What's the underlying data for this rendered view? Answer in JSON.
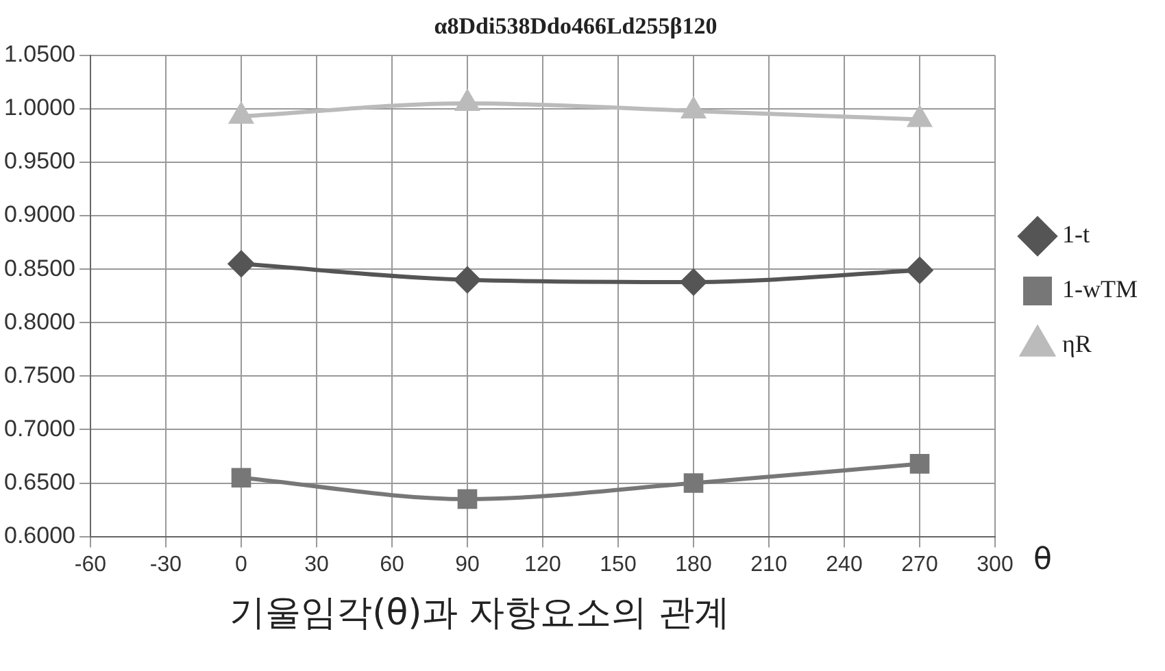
{
  "chart_data": {
    "type": "line",
    "title": "α8Ddi538Ddo466Ld255β120",
    "xlabel": "θ",
    "annotations": [
      "기울임각(θ)과 자항요소의 관계"
    ],
    "x": [
      0,
      90,
      180,
      270
    ],
    "series": [
      {
        "name": "1-t",
        "color": "#555555",
        "marker": "diamond",
        "values": [
          0.855,
          0.84,
          0.838,
          0.849
        ]
      },
      {
        "name": "1-wTM",
        "color": "#777777",
        "marker": "square",
        "values": [
          0.655,
          0.635,
          0.65,
          0.668
        ]
      },
      {
        "name": "ηR",
        "color": "#bbbbbb",
        "marker": "triangle",
        "values": [
          0.993,
          1.005,
          0.998,
          0.99
        ]
      }
    ],
    "xlim": [
      -60,
      300
    ],
    "xticks": [
      -60,
      -30,
      0,
      30,
      60,
      90,
      120,
      150,
      180,
      210,
      240,
      270,
      300
    ],
    "ylim": [
      0.6,
      1.05
    ],
    "yticks": [
      {
        "value": 0.6,
        "label": "0.6000"
      },
      {
        "value": 0.65,
        "label": "0.6500"
      },
      {
        "value": 0.7,
        "label": "0.7000"
      },
      {
        "value": 0.75,
        "label": "0.7500"
      },
      {
        "value": 0.8,
        "label": "0.8000"
      },
      {
        "value": 0.85,
        "label": "0.8500"
      },
      {
        "value": 0.9,
        "label": "0.9000"
      },
      {
        "value": 0.95,
        "label": "0.9500"
      },
      {
        "value": 1.0,
        "label": "1.0000"
      },
      {
        "value": 1.05,
        "label": "1.0500"
      }
    ],
    "grid": true,
    "legend": "right"
  }
}
